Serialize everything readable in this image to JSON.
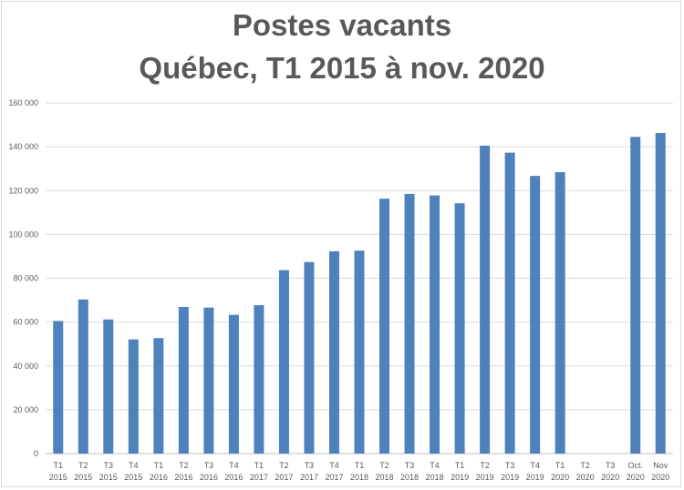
{
  "chart_data": {
    "type": "bar",
    "title": "Postes vacants",
    "subtitle": "Québec, T1 2015 à nov. 2020",
    "xlabel": "",
    "ylabel": "",
    "ylim": [
      0,
      160000
    ],
    "yticks": [
      0,
      20000,
      40000,
      60000,
      80000,
      100000,
      120000,
      140000,
      160000
    ],
    "ytick_labels": [
      "0",
      "20 000",
      "40 000",
      "60 000",
      "80 000",
      "100 000",
      "120 000",
      "140 000",
      "160 000"
    ],
    "grid": true,
    "legend": "none",
    "bar_color": "#4f81bd",
    "categories": [
      [
        "T1",
        "2015"
      ],
      [
        "T2",
        "2015"
      ],
      [
        "T3",
        "2015"
      ],
      [
        "T4",
        "2015"
      ],
      [
        "T1",
        "2016"
      ],
      [
        "T2",
        "2016"
      ],
      [
        "T3",
        "2016"
      ],
      [
        "T4",
        "2016"
      ],
      [
        "T1",
        "2017"
      ],
      [
        "T2",
        "2017"
      ],
      [
        "T3",
        "2017"
      ],
      [
        "T4",
        "2017"
      ],
      [
        "T1",
        "2018"
      ],
      [
        "T2",
        "2018"
      ],
      [
        "T3",
        "2018"
      ],
      [
        "T4",
        "2018"
      ],
      [
        "T1",
        "2019"
      ],
      [
        "T2",
        "2019"
      ],
      [
        "T3",
        "2019"
      ],
      [
        "T4",
        "2019"
      ],
      [
        "T1",
        "2020"
      ],
      [
        "T2",
        "2020"
      ],
      [
        "T3",
        "2020"
      ],
      [
        "Oct.",
        "2020"
      ],
      [
        "Nov",
        "2020"
      ]
    ],
    "values": [
      60500,
      70300,
      61200,
      52100,
      52700,
      66900,
      66600,
      63300,
      67700,
      83700,
      87400,
      92300,
      92600,
      116300,
      118500,
      117800,
      114200,
      140500,
      137300,
      126700,
      128400,
      null,
      null,
      144500,
      146300
    ]
  }
}
